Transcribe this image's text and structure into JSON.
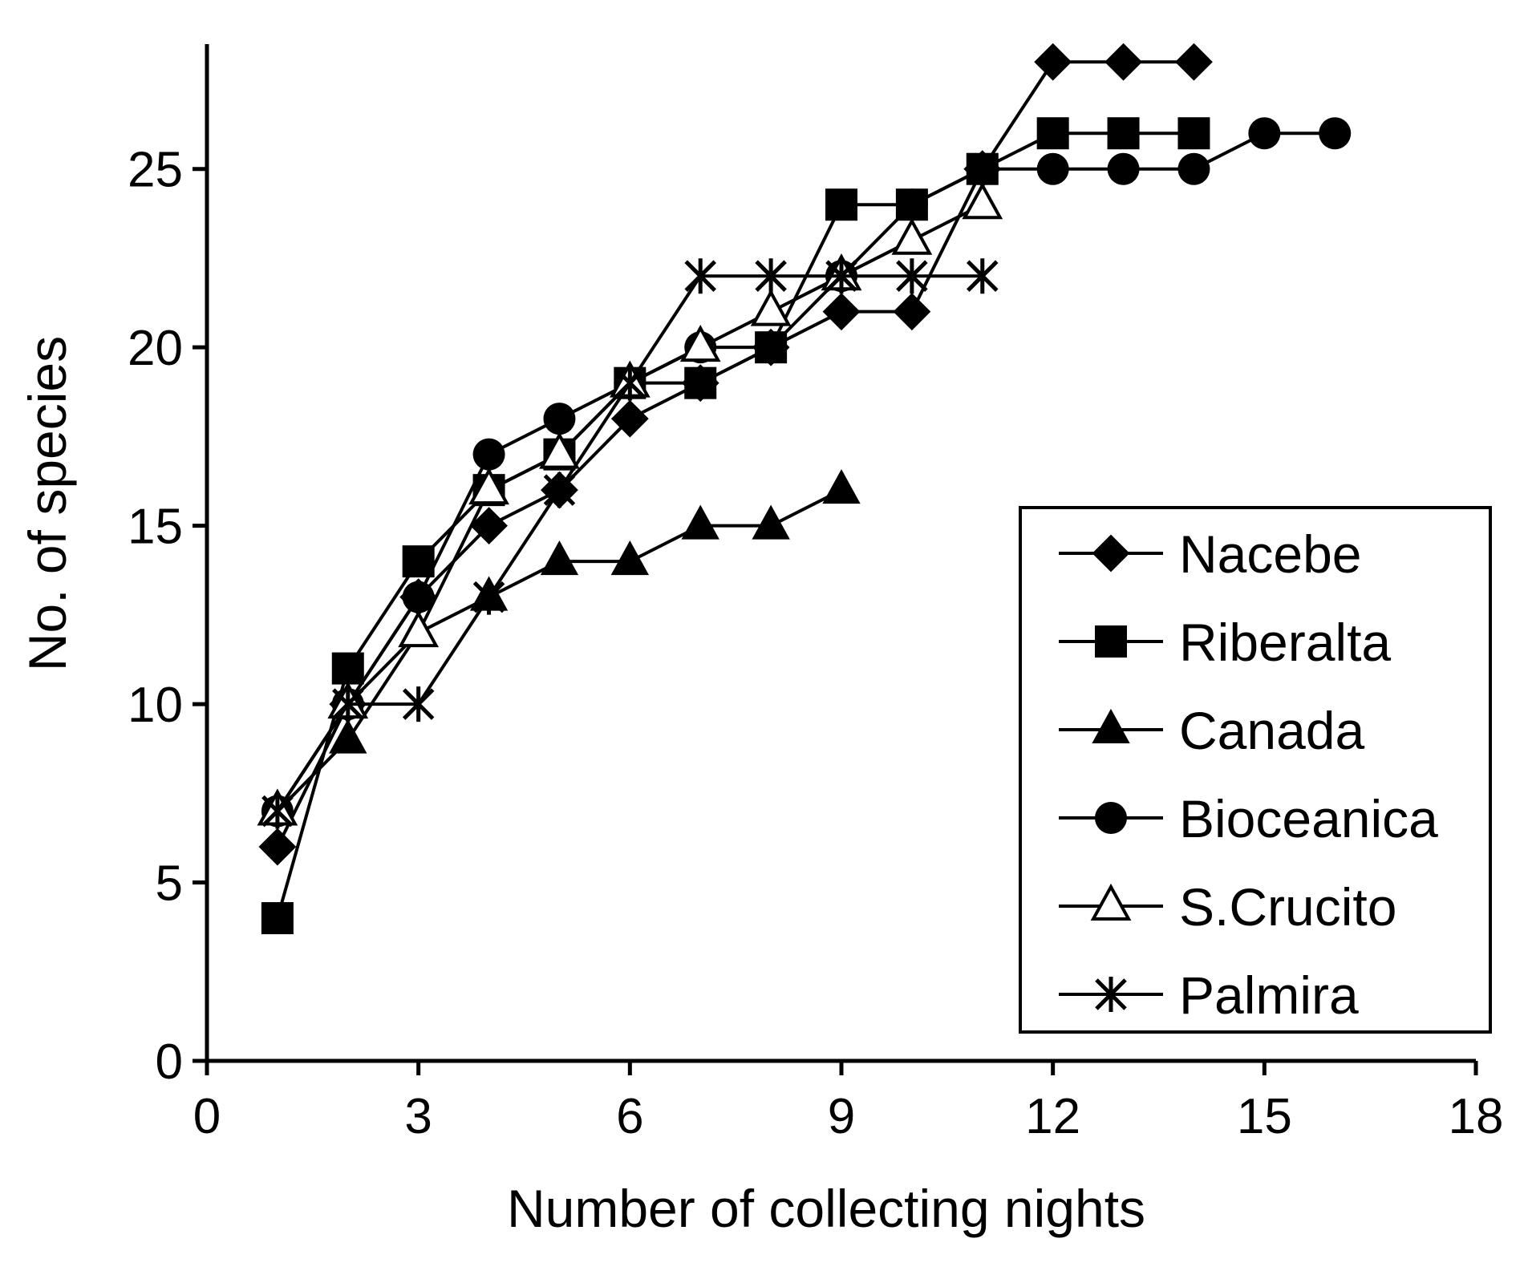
{
  "chart_data": {
    "type": "line",
    "xlabel": "Number of collecting nights",
    "ylabel": "No. of species",
    "xlim": [
      0,
      18
    ],
    "ylim": [
      0,
      28.5
    ],
    "xticks": [
      0,
      3,
      6,
      9,
      12,
      15,
      18
    ],
    "yticks": [
      0,
      5,
      10,
      15,
      20,
      25
    ],
    "grid": false,
    "legend_position": "bottom-right",
    "series": [
      {
        "name": "Nacebe",
        "marker": "filled-diamond",
        "color": "#000000",
        "x": [
          1,
          2,
          3,
          4,
          5,
          6,
          7,
          8,
          9,
          10,
          11,
          12,
          13,
          14
        ],
        "y": [
          6,
          10,
          13,
          15,
          16,
          18,
          19,
          20,
          21,
          21,
          25,
          28,
          28,
          28
        ]
      },
      {
        "name": "Riberalta",
        "marker": "filled-square",
        "color": "#000000",
        "x": [
          1,
          2,
          3,
          4,
          5,
          6,
          7,
          8,
          9,
          10,
          11,
          12,
          13,
          14
        ],
        "y": [
          4,
          11,
          14,
          16,
          17,
          19,
          19,
          20,
          24,
          24,
          25,
          26,
          26,
          26
        ]
      },
      {
        "name": "Canada",
        "marker": "filled-triangle",
        "color": "#000000",
        "x": [
          1,
          2,
          3,
          4,
          5,
          6,
          7,
          8,
          9
        ],
        "y": [
          7,
          9,
          12,
          13,
          14,
          14,
          15,
          15,
          16
        ]
      },
      {
        "name": "Bioceanica",
        "marker": "filled-circle",
        "color": "#000000",
        "x": [
          1,
          2,
          3,
          4,
          5,
          6,
          7,
          8,
          9,
          10,
          11,
          12,
          13,
          14,
          15,
          16
        ],
        "y": [
          7,
          10,
          13,
          17,
          18,
          19,
          20,
          20,
          22,
          24,
          25,
          25,
          25,
          25,
          26,
          26
        ]
      },
      {
        "name": "S.Crucito",
        "marker": "open-triangle",
        "color": "#000000",
        "x": [
          1,
          2,
          3,
          4,
          5,
          6,
          7,
          8,
          9,
          10,
          11
        ],
        "y": [
          7,
          10,
          12,
          16,
          17,
          19,
          20,
          21,
          22,
          23,
          24
        ]
      },
      {
        "name": "Palmira",
        "marker": "asterisk",
        "color": "#000000",
        "x": [
          1,
          2,
          3,
          4,
          5,
          6,
          7,
          8,
          9,
          10,
          11
        ],
        "y": [
          7,
          10,
          10,
          13,
          16,
          19,
          22,
          22,
          22,
          22,
          22
        ]
      }
    ]
  }
}
